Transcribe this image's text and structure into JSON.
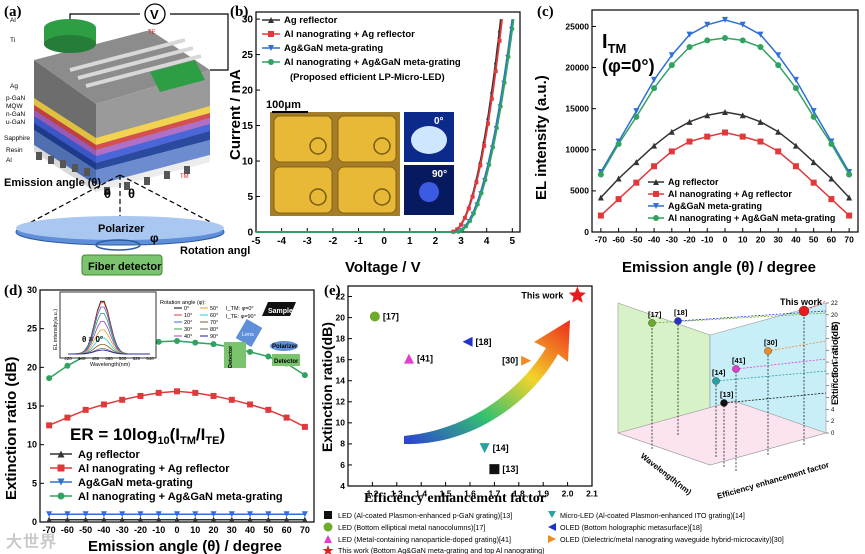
{
  "panel_labels": {
    "a": "(a)",
    "b": "(b)",
    "c": "(c)",
    "d": "(d)",
    "e": "(e)"
  },
  "schematic": {
    "layers": [
      "Al",
      "Ti",
      "Ag",
      "p-GaN",
      "MQW",
      "n-GaN",
      "u-GaN",
      "Sapphire",
      "Resin",
      "Al"
    ],
    "voltmeter": "V",
    "te": "TE",
    "tm": "TM",
    "theta": "θ",
    "emission_label": "Emission angle (θ)",
    "polarizer": "Polarizer",
    "phi": "φ",
    "fiber": "Fiber detector",
    "rotation_label": "Rotation angle (φ)"
  },
  "colors": {
    "ag": "#333333",
    "al": "#e0393c",
    "aggan": "#2f6fd6",
    "alaggan": "#2fa35f"
  },
  "chart_b": {
    "type": "line",
    "xlabel": "Voltage / V",
    "ylabel": "Current / mA",
    "xlim": [
      -5,
      5.3
    ],
    "ylim": [
      0,
      31
    ],
    "xticks": [
      "-5",
      "-4",
      "-3",
      "-2",
      "-1",
      "0",
      "1",
      "2",
      "3",
      "4",
      "5"
    ],
    "yticks": [
      "0",
      "5",
      "10",
      "15",
      "20",
      "25",
      "30"
    ],
    "legend": [
      "Ag reflector",
      "Al nanograting + Ag reflector",
      "Ag&GaN meta-grating",
      "Al nanograting + Ag&GaN meta-grating"
    ],
    "legend_note": "(Proposed efficient LP-Micro-LED)",
    "scale_bar": "100μm",
    "inset_angles": [
      "0°",
      "90°"
    ],
    "series": [
      {
        "name": "Ag reflector",
        "threshold": 2.6,
        "end": 4.55
      },
      {
        "name": "Al nanograting + Ag reflector",
        "threshold": 2.6,
        "end": 4.6
      },
      {
        "name": "Ag&GaN meta-grating",
        "threshold": 2.75,
        "end": 5.0
      },
      {
        "name": "Al nanograting + Ag&GaN meta-grating",
        "threshold": 2.8,
        "end": 5.05
      }
    ]
  },
  "chart_c": {
    "type": "line",
    "title": "I",
    "title_sub": "TM",
    "title_line2": "(φ=0°)",
    "xlabel": "Emission angle (θ) / degree",
    "ylabel": "EL intensity (a.u.)",
    "xlim": [
      -75,
      75
    ],
    "ylim": [
      0,
      27000
    ],
    "x": [
      -70,
      -60,
      -50,
      -40,
      -30,
      -20,
      -10,
      0,
      10,
      20,
      30,
      40,
      50,
      60,
      70
    ],
    "xticks": [
      "-70",
      "-60",
      "-50",
      "-40",
      "-30",
      "-20",
      "-10",
      "0",
      "10",
      "20",
      "30",
      "40",
      "50",
      "60",
      "70"
    ],
    "yticks": [
      "0",
      "5000",
      "10000",
      "15000",
      "20000",
      "25000"
    ],
    "series": [
      {
        "name": "Ag reflector",
        "values": [
          4200,
          6500,
          8500,
          10500,
          12200,
          13400,
          14200,
          14600,
          14200,
          13400,
          12200,
          10500,
          8500,
          6500,
          4200
        ]
      },
      {
        "name": "Al nanograting + Ag reflector",
        "values": [
          2000,
          4000,
          6000,
          8000,
          9800,
          11000,
          11600,
          12100,
          11600,
          11000,
          9800,
          8000,
          6000,
          4000,
          2000
        ]
      },
      {
        "name": "Ag&GaN meta-grating",
        "values": [
          7300,
          11000,
          14700,
          18500,
          21500,
          24000,
          25200,
          25800,
          25200,
          24000,
          21500,
          18500,
          14700,
          11000,
          7300
        ]
      },
      {
        "name": "Al nanograting + Ag&GaN meta-grating",
        "values": [
          7000,
          10700,
          14000,
          17500,
          20300,
          22500,
          23300,
          23600,
          23300,
          22500,
          20300,
          17500,
          14000,
          10700,
          7000
        ]
      }
    ]
  },
  "chart_d": {
    "type": "line",
    "xlabel": "Emission angle (θ) / degree",
    "ylabel": "Extinction ratio (dB)",
    "formula_pre": "ER = 10log",
    "formula_sub": "10",
    "formula_post": "(I",
    "formula_tm": "TM",
    "formula_slash": "/I",
    "formula_te": "TE",
    "formula_end": ")",
    "xlim": [
      -75,
      75
    ],
    "ylim": [
      0,
      30
    ],
    "x": [
      -70,
      -60,
      -50,
      -40,
      -30,
      -20,
      -10,
      0,
      10,
      20,
      30,
      40,
      50,
      60,
      70
    ],
    "xticks": [
      "-70",
      "-60",
      "-50",
      "-40",
      "-30",
      "-20",
      "-10",
      "0",
      "10",
      "20",
      "30",
      "40",
      "50",
      "60",
      "70"
    ],
    "yticks": [
      "0",
      "5",
      "10",
      "15",
      "20",
      "25",
      "30"
    ],
    "series": [
      {
        "name": "Ag reflector",
        "values": [
          0.3,
          0.3,
          0.3,
          0.3,
          0.3,
          0.3,
          0.3,
          0.3,
          0.3,
          0.3,
          0.3,
          0.3,
          0.3,
          0.3,
          0.3
        ]
      },
      {
        "name": "Al nanograting + Ag reflector",
        "values": [
          12.5,
          13.5,
          14.5,
          15.2,
          15.8,
          16.3,
          16.7,
          16.9,
          16.7,
          16.3,
          15.8,
          15.2,
          14.5,
          13.5,
          12.3
        ]
      },
      {
        "name": "Ag&GaN meta-grating",
        "values": [
          1,
          1,
          1,
          1,
          1,
          1,
          1,
          1,
          1,
          1,
          1,
          1,
          1,
          1,
          1
        ]
      },
      {
        "name": "Al nanograting + Ag&GaN meta-grating",
        "values": [
          18.6,
          20.2,
          21.5,
          22.3,
          22.9,
          23.1,
          23.3,
          23.4,
          23.2,
          23.0,
          22.6,
          22.0,
          21.4,
          20.5,
          19.0
        ]
      }
    ],
    "inset": {
      "ylabel": "EL intensity(a.u.)",
      "xlabel": "Wavelength(nm)",
      "xticks": [
        "420",
        "440",
        "460",
        "480",
        "500",
        "520",
        "540"
      ],
      "legend_title": "Rotation angle (φ):",
      "angles": [
        "0°",
        "10°",
        "20°",
        "30°",
        "40°",
        "50°",
        "60°",
        "70°",
        "80°",
        "90°"
      ],
      "itm": "I_TM: φ=0°",
      "ite": "I_TE: φ=90°",
      "theta0": "θ = 0°",
      "sample": "Sample",
      "lens": "Lens",
      "detector1": "Detector",
      "polarizer": "Polarizer",
      "detector2": "Detector"
    }
  },
  "chart_e": {
    "type": "scatter",
    "xlabel": "Efficiency enhancement factor",
    "ylabel": "Extinction ratio(dB)",
    "xlim": [
      1.1,
      2.1
    ],
    "ylim": [
      4,
      23
    ],
    "xticks": [
      "1.2",
      "1.3",
      "1.4",
      "1.5",
      "1.6",
      "1.7",
      "1.8",
      "1.9",
      "2.0",
      "2.1"
    ],
    "yticks": [
      "4",
      "6",
      "8",
      "10",
      "12",
      "14",
      "16",
      "18",
      "20",
      "22"
    ],
    "points": [
      {
        "label": "[17]",
        "x": 1.21,
        "y": 20.1,
        "shape": "circle",
        "color": "#6cab2c"
      },
      {
        "label": "[41]",
        "x": 1.35,
        "y": 16.1,
        "shape": "triangle",
        "color": "#e43bd0"
      },
      {
        "label": "[18]",
        "x": 1.59,
        "y": 17.7,
        "shape": "tri-left",
        "color": "#2233cc"
      },
      {
        "label": "[30]",
        "x": 1.83,
        "y": 15.9,
        "shape": "tri-right",
        "color": "#f08a24"
      },
      {
        "label": "[14]",
        "x": 1.66,
        "y": 7.6,
        "shape": "tri-down",
        "color": "#27a2a2"
      },
      {
        "label": "[13]",
        "x": 1.7,
        "y": 5.6,
        "shape": "square",
        "color": "#111111"
      },
      {
        "label": "This work",
        "x": 2.04,
        "y": 22.1,
        "shape": "star",
        "color": "#e61c1c"
      }
    ],
    "bar3d": {
      "zlabel": "Extinction ratio(dB)",
      "xlabel": "Efficiency enhancement factor",
      "ylabel": "Wavelength(nm)",
      "zticks": [
        "0",
        "2",
        "4",
        "6",
        "8",
        "10",
        "12",
        "14",
        "16",
        "18",
        "20",
        "22"
      ],
      "labels": [
        "[17]",
        "[18]",
        "[30]",
        "[41]",
        "[14]",
        "[13]",
        "This work"
      ]
    }
  },
  "refs": [
    "LED (Al-coated Plasmon-enhanced p-GaN grating)[13]",
    "Micro-LED (Al-coated Plasmon-enhanced ITO grating)[14]",
    "LED (Bottom elliptical metal nanocolumns)[17]",
    "OLED (Bottom holographic metasurface)[18]",
    "LED (Metal-containing nanoparticle-doped grating)[41]",
    "OLED (Dielectric/metal nanograting waveguide hybrid-microcavity)[30]",
    "This work (Bottom Ag&GaN meta-grating and top Al nanograting)"
  ],
  "watermark": "大世界"
}
